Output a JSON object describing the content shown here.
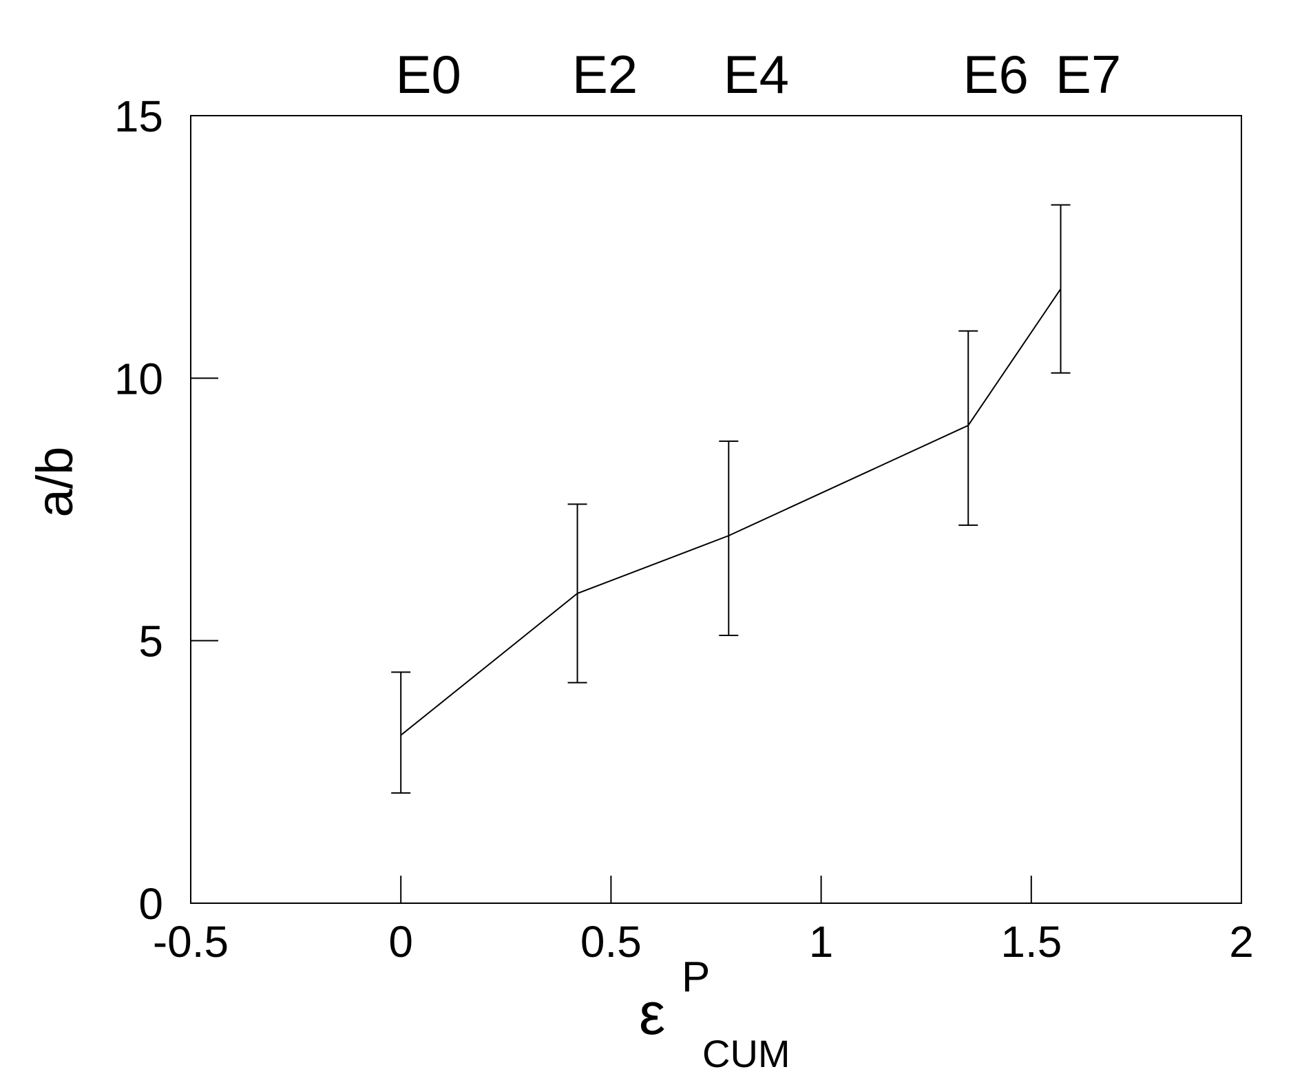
{
  "chart_data": {
    "type": "line",
    "title": "",
    "xlabel": "ε",
    "xlabel_superscript": "P",
    "xlabel_subscript": "CUM",
    "ylabel": "a/b",
    "xlim": [
      -0.5,
      2
    ],
    "ylim": [
      0,
      15
    ],
    "x_ticks": [
      -0.5,
      0,
      0.5,
      1,
      1.5,
      2
    ],
    "x_tick_labels": [
      "-0.5",
      "0",
      "0.5",
      "1",
      "1.5",
      "2"
    ],
    "y_ticks": [
      0,
      5,
      10,
      15
    ],
    "y_tick_labels": [
      "0",
      "5",
      "10",
      "15"
    ],
    "grid": false,
    "legend": "none",
    "line_color": "#000000",
    "series": [
      {
        "x": [
          0,
          0.42,
          0.78,
          1.35,
          1.57
        ],
        "y": [
          3.2,
          5.9,
          7.0,
          9.1,
          11.7
        ],
        "err_low": [
          2.1,
          4.2,
          5.1,
          7.2,
          10.1
        ],
        "err_high": [
          4.4,
          7.6,
          8.8,
          10.9,
          13.3
        ],
        "point_labels": [
          "E0",
          "E2",
          "E4",
          "E6",
          "E7"
        ]
      }
    ]
  }
}
